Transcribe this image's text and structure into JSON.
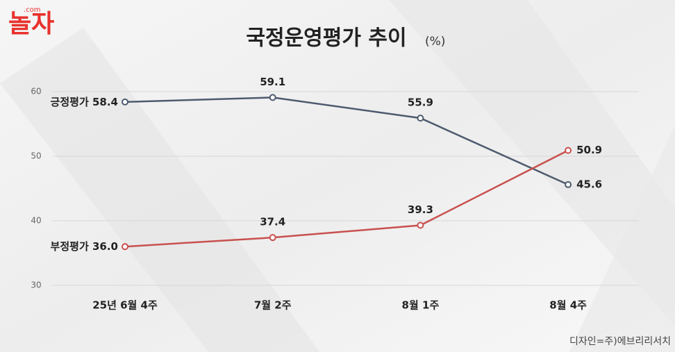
{
  "logo": {
    "text": "놀자",
    "domain": ".com"
  },
  "chart_data": {
    "type": "line",
    "title": "국정운영평가 추이",
    "unit": "(%)",
    "categories": [
      "25년 6월 4주",
      "7월 2주",
      "8월 1주",
      "8월 4주"
    ],
    "series": [
      {
        "name": "긍정평가",
        "color": "#4d5a6e",
        "values": [
          58.4,
          59.1,
          55.9,
          45.6
        ],
        "value_labels": [
          "58.4",
          "59.1",
          "55.9",
          "45.6"
        ]
      },
      {
        "name": "부정평가",
        "color": "#c8504e",
        "values": [
          36.0,
          37.4,
          39.3,
          50.9
        ],
        "value_labels": [
          "36.0",
          "37.4",
          "39.3",
          "50.9"
        ]
      }
    ],
    "ylim": [
      30,
      60
    ],
    "yticks": [
      30,
      40,
      50,
      60
    ],
    "grid": true,
    "source": "디자인=주)에브리리서치"
  }
}
